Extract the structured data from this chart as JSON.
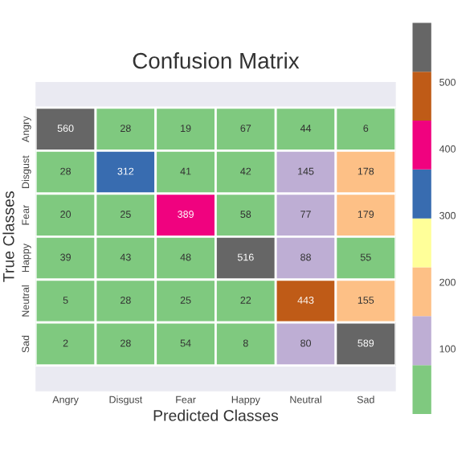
{
  "chart_data": {
    "type": "heatmap",
    "title": "Confusion Matrix",
    "xlabel": "Predicted Classes",
    "ylabel": "True Classes",
    "categories": [
      "Angry",
      "Disgust",
      "Fear",
      "Happy",
      "Neutral",
      "Sad"
    ],
    "y_categories": [
      "Angry",
      "Disgust",
      "Fear",
      "Happy",
      "Neutral",
      "Sad"
    ],
    "cells": [
      [
        560,
        28,
        19,
        67,
        44,
        6
      ],
      [
        28,
        312,
        41,
        42,
        145,
        178
      ],
      [
        20,
        25,
        389,
        58,
        77,
        179
      ],
      [
        39,
        43,
        48,
        516,
        88,
        55
      ],
      [
        5,
        28,
        25,
        22,
        443,
        155
      ],
      [
        2,
        28,
        54,
        8,
        80,
        589
      ]
    ],
    "data_labels": true,
    "clim": [
      2,
      589
    ],
    "cticks": [
      100,
      200,
      300,
      400,
      500
    ]
  }
}
